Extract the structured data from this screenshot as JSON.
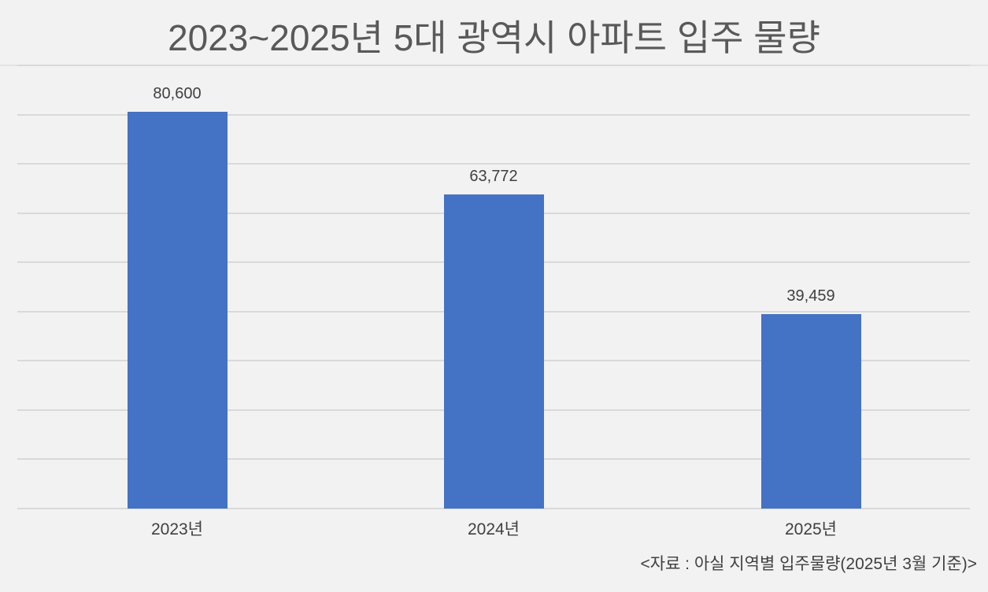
{
  "chart_data": {
    "type": "bar",
    "title": "2023~2025년 5대 광역시 아파트 입주 물량",
    "categories": [
      "2023년",
      "2024년",
      "2025년"
    ],
    "values": [
      80600,
      63772,
      39459
    ],
    "value_labels": [
      "80,600",
      "63,772",
      "39,459"
    ],
    "xlabel": "",
    "ylabel": "",
    "ylim": [
      0,
      90000
    ],
    "ytick_step": 10000,
    "y_axis_labels_shown": false,
    "grid": true,
    "legend": null,
    "bar_color": "#4472c4",
    "source_note": "<자료 : 아실 지역별 입주물량(2025년 3월 기준)>"
  },
  "colors": {
    "background": "#f2f2f2",
    "bar": "#4472c4",
    "gridline": "#d9d9d9",
    "title_text": "#595959",
    "label_text": "#404040"
  }
}
